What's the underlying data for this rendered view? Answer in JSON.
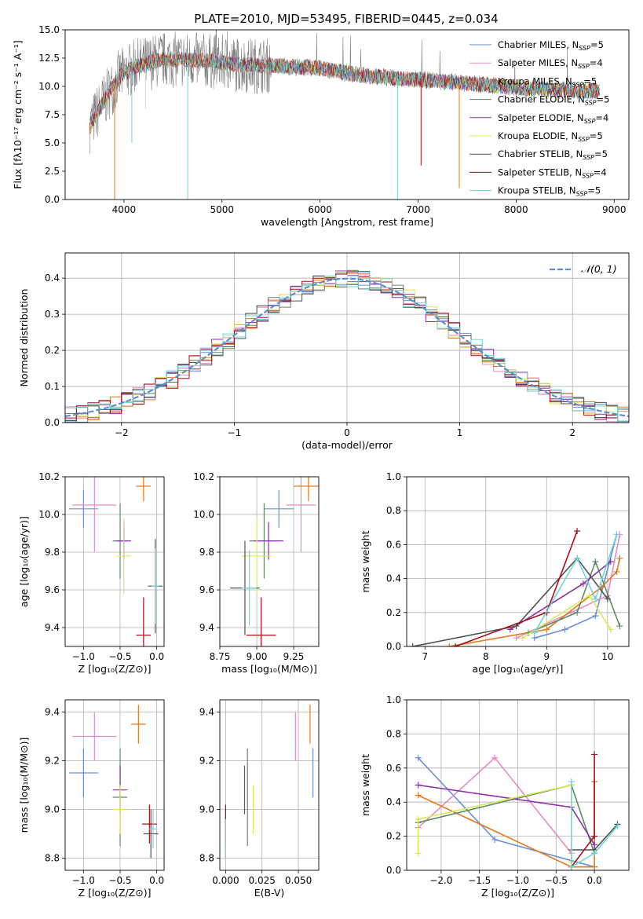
{
  "figure": {
    "title": "PLATE=2010, MJD=53495, FIBERID=0445, z=0.034"
  },
  "model_colors": [
    "#6b8fd6",
    "#e78ac3",
    "#e6781e",
    "#5f8b64",
    "#8e2ea8",
    "#d9e85a",
    "#505050",
    "#a50f15",
    "#6fd4dc"
  ],
  "legend": [
    {
      "label": "Chabrier MILES, N",
      "sub": "SSP",
      "suffix": "=5"
    },
    {
      "label": "Salpeter MILES, N",
      "sub": "SSP",
      "suffix": "=4"
    },
    {
      "label": "Kroupa MILES, N",
      "sub": "SSP",
      "suffix": "=5"
    },
    {
      "label": "Chabrier ELODIE, N",
      "sub": "SSP",
      "suffix": "=5"
    },
    {
      "label": "Salpeter ELODIE, N",
      "sub": "SSP",
      "suffix": "=4"
    },
    {
      "label": "Kroupa ELODIE, N",
      "sub": "SSP",
      "suffix": "=5"
    },
    {
      "label": "Chabrier STELIB, N",
      "sub": "SSP",
      "suffix": "=5"
    },
    {
      "label": "Salpeter STELIB, N",
      "sub": "SSP",
      "suffix": "=4"
    },
    {
      "label": "Kroupa STELIB, N",
      "sub": "SSP",
      "suffix": "=5"
    }
  ],
  "chart_data": [
    {
      "id": "spectrum",
      "type": "line",
      "xlabel": "wavelength [Angstrom, rest frame]",
      "ylabel": "Flux [fλ10⁻¹⁷ erg cm⁻² s⁻¹ A⁻¹]",
      "xlim": [
        3400,
        9150
      ],
      "ylim": [
        0,
        15
      ],
      "xticks": [
        4000,
        5000,
        6000,
        7000,
        8000,
        9000
      ],
      "yticks": [
        0.0,
        2.5,
        5.0,
        7.5,
        10.0,
        12.5,
        15.0
      ],
      "data_range": [
        3650,
        8850
      ],
      "continuum": [
        [
          3650,
          6.5
        ],
        [
          3800,
          8.8
        ],
        [
          3950,
          10.8
        ],
        [
          4100,
          11.7
        ],
        [
          4400,
          12.4
        ],
        [
          4800,
          12.3
        ],
        [
          5200,
          11.9
        ],
        [
          5600,
          11.8
        ],
        [
          6000,
          11.6
        ],
        [
          6400,
          11.0
        ],
        [
          6800,
          10.7
        ],
        [
          7200,
          10.5
        ],
        [
          7600,
          10.2
        ],
        [
          8000,
          9.9
        ],
        [
          8400,
          9.7
        ],
        [
          8850,
          9.6
        ]
      ],
      "model_spikes": [
        [
          3905,
          0.0
        ],
        [
          4650,
          0.0
        ],
        [
          4080,
          5.0
        ],
        [
          4220,
          8.0
        ],
        [
          6790,
          0.0
        ],
        [
          7030,
          3.0
        ],
        [
          7420,
          1.0
        ]
      ]
    },
    {
      "id": "residuals",
      "type": "line",
      "xlabel": "(data-model)/error",
      "ylabel": "Normed distribution",
      "xlim": [
        -2.5,
        2.5
      ],
      "ylim": [
        0,
        0.47
      ],
      "xticks": [
        -2,
        -1,
        0,
        1,
        2
      ],
      "yticks": [
        0.0,
        0.1,
        0.2,
        0.3,
        0.4
      ],
      "legend_label": "𝒩(0, 1)",
      "bin_width": 0.1,
      "bin_start": -2.5,
      "grid": true
    },
    {
      "id": "age_vs_Z",
      "type": "scatter",
      "xlabel": "Z [log₁₀(Z/Z⊙)]",
      "ylabel": "age  [log₁₀(age/yr)]",
      "xlim": [
        -1.25,
        0.1
      ],
      "ylim": [
        9.3,
        10.2
      ],
      "xticks": [
        -1.0,
        -0.5,
        0.0
      ],
      "yticks": [
        9.4,
        9.6,
        9.8,
        10.0,
        10.2
      ],
      "points": [
        {
          "x": -1.0,
          "y": 10.03,
          "xerr": 0.2,
          "yerr": 0.1
        },
        {
          "x": -0.85,
          "y": 10.05,
          "xerr": 0.3,
          "yerr": 0.25
        },
        {
          "x": -0.18,
          "y": 10.15,
          "xerr": 0.1,
          "yerr": 0.08
        },
        {
          "x": -0.5,
          "y": 9.86,
          "xerr": 0.1,
          "yerr": 0.2
        },
        {
          "x": -0.45,
          "y": 9.86,
          "xerr": 0.1,
          "yerr": 0.1
        },
        {
          "x": -0.45,
          "y": 9.78,
          "xerr": 0.1,
          "yerr": 0.2
        },
        {
          "x": -0.02,
          "y": 9.62,
          "xerr": 0.1,
          "yerr": 0.25
        },
        {
          "x": -0.18,
          "y": 9.36,
          "xerr": 0.1,
          "yerr": 0.2
        },
        {
          "x": -0.02,
          "y": 9.62,
          "xerr": 0.05,
          "yerr": 0.2
        }
      ]
    },
    {
      "id": "age_vs_mass",
      "type": "scatter",
      "xlabel": "mass [log₁₀(M/M⊙)]",
      "ylabel": "",
      "xlim": [
        8.75,
        9.42
      ],
      "ylim": [
        9.3,
        10.2
      ],
      "xticks": [
        8.75,
        9.0,
        9.25
      ],
      "yticks": [
        9.4,
        9.6,
        9.8,
        10.0,
        10.2
      ],
      "points": [
        {
          "x": 9.15,
          "y": 10.03,
          "xerr": 0.1,
          "yerr": 0.1
        },
        {
          "x": 9.3,
          "y": 10.05,
          "xerr": 0.1,
          "yerr": 0.25
        },
        {
          "x": 9.35,
          "y": 10.15,
          "xerr": 0.1,
          "yerr": 0.08
        },
        {
          "x": 9.05,
          "y": 9.86,
          "xerr": 0.1,
          "yerr": 0.2
        },
        {
          "x": 9.08,
          "y": 9.86,
          "xerr": 0.1,
          "yerr": 0.1
        },
        {
          "x": 9.0,
          "y": 9.78,
          "xerr": 0.1,
          "yerr": 0.2
        },
        {
          "x": 8.92,
          "y": 9.61,
          "xerr": 0.1,
          "yerr": 0.25
        },
        {
          "x": 9.03,
          "y": 9.36,
          "xerr": 0.1,
          "yerr": 0.2
        },
        {
          "x": 8.95,
          "y": 9.61,
          "xerr": 0.05,
          "yerr": 0.2
        }
      ]
    },
    {
      "id": "massweight_vs_age",
      "type": "line",
      "xlabel": "age  [log₁₀(age/yr)]",
      "ylabel": "mass weight",
      "xlim": [
        6.7,
        10.35
      ],
      "ylim": [
        0,
        1
      ],
      "xticks": [
        7,
        8,
        9,
        10
      ],
      "yticks": [
        0.0,
        0.2,
        0.4,
        0.6,
        0.8,
        1.0
      ],
      "series": [
        {
          "x": [
            8.8,
            9.3,
            9.8,
            10.15
          ],
          "y": [
            0.05,
            0.1,
            0.18,
            0.66
          ]
        },
        {
          "x": [
            8.5,
            9.4,
            10.0,
            10.2
          ],
          "y": [
            0.05,
            0.2,
            0.3,
            0.66
          ]
        },
        {
          "x": [
            7.4,
            9.0,
            9.9,
            10.15,
            10.2
          ],
          "y": [
            0.0,
            0.1,
            0.35,
            0.44,
            0.52
          ]
        },
        {
          "x": [
            8.7,
            9.5,
            9.8,
            10.2
          ],
          "y": [
            0.08,
            0.2,
            0.5,
            0.12
          ]
        },
        {
          "x": [
            8.4,
            9.6,
            10.05
          ],
          "y": [
            0.1,
            0.37,
            0.5
          ]
        },
        {
          "x": [
            8.6,
            9.7,
            10.05
          ],
          "y": [
            0.05,
            0.3,
            0.1
          ]
        },
        {
          "x": [
            6.8,
            8.5,
            9.5,
            10.0
          ],
          "y": [
            0.0,
            0.12,
            0.52,
            0.28
          ]
        },
        {
          "x": [
            7.5,
            9.0,
            9.5
          ],
          "y": [
            0.0,
            0.2,
            0.68
          ]
        },
        {
          "x": [
            8.8,
            9.5,
            9.8,
            10.15
          ],
          "y": [
            0.08,
            0.52,
            0.28,
            0.66
          ]
        }
      ]
    },
    {
      "id": "mass_vs_Z",
      "type": "scatter",
      "xlabel": "Z [log₁₀(Z/Z⊙)]",
      "ylabel": "mass [log₁₀(M/M⊙)]",
      "xlim": [
        -1.25,
        0.1
      ],
      "ylim": [
        8.75,
        9.45
      ],
      "xticks": [
        -1.0,
        -0.5,
        0.0
      ],
      "yticks": [
        8.8,
        9.0,
        9.2,
        9.4
      ],
      "points": [
        {
          "x": -1.0,
          "y": 9.15,
          "xerr": 0.2,
          "yerr": 0.1
        },
        {
          "x": -0.85,
          "y": 9.3,
          "xerr": 0.3,
          "yerr": 0.1
        },
        {
          "x": -0.25,
          "y": 9.35,
          "xerr": 0.1,
          "yerr": 0.08
        },
        {
          "x": -0.5,
          "y": 9.05,
          "xerr": 0.1,
          "yerr": 0.2
        },
        {
          "x": -0.5,
          "y": 9.08,
          "xerr": 0.1,
          "yerr": 0.1
        },
        {
          "x": -0.5,
          "y": 9.0,
          "xerr": 0.1,
          "yerr": 0.1
        },
        {
          "x": -0.08,
          "y": 8.9,
          "xerr": 0.1,
          "yerr": 0.1
        },
        {
          "x": -0.1,
          "y": 8.94,
          "xerr": 0.1,
          "yerr": 0.08
        },
        {
          "x": -0.05,
          "y": 8.92,
          "xerr": 0.05,
          "yerr": 0.08
        }
      ]
    },
    {
      "id": "mass_vs_ebv",
      "type": "scatter",
      "xlabel": "E(B-V)",
      "ylabel": "",
      "xlim": [
        -0.004,
        0.064
      ],
      "ylim": [
        8.75,
        9.45
      ],
      "xticks": [
        0.0,
        0.025,
        0.05
      ],
      "yticks": [
        8.8,
        9.0,
        9.2,
        9.4
      ],
      "points": [
        {
          "x": 0.06,
          "y": 9.15,
          "xerr": 0.0,
          "yerr": 0.1
        },
        {
          "x": 0.048,
          "y": 9.3,
          "xerr": 0.0,
          "yerr": 0.1
        },
        {
          "x": 0.058,
          "y": 9.35,
          "xerr": 0.0,
          "yerr": 0.08
        },
        {
          "x": 0.015,
          "y": 9.05,
          "xerr": 0.0,
          "yerr": 0.2
        },
        {
          "x": 0.013,
          "y": 9.08,
          "xerr": 0.0,
          "yerr": 0.1
        },
        {
          "x": 0.019,
          "y": 9.0,
          "xerr": 0.0,
          "yerr": 0.1
        },
        {
          "x": 0.0,
          "y": 8.9,
          "xerr": 0.0,
          "yerr": 0.1
        },
        {
          "x": 0.0,
          "y": 8.94,
          "xerr": 0.0,
          "yerr": 0.08
        },
        {
          "x": 0.0,
          "y": 8.88,
          "xerr": 0.0,
          "yerr": 0.08
        }
      ]
    },
    {
      "id": "massweight_vs_Z",
      "type": "line",
      "xlabel": "Z [log₁₀(Z/Z⊙)]",
      "ylabel": "mass weight",
      "xlim": [
        -2.45,
        0.45
      ],
      "ylim": [
        0,
        1
      ],
      "xticks": [
        -2.0,
        -1.5,
        -1.0,
        -0.5,
        0.0
      ],
      "yticks": [
        0.0,
        0.2,
        0.4,
        0.6,
        0.8,
        1.0
      ],
      "series": [
        {
          "x": [
            -2.3,
            -1.3,
            0.0
          ],
          "y": [
            0.66,
            0.18,
            0.02
          ]
        },
        {
          "x": [
            -2.3,
            -1.3,
            -0.3
          ],
          "y": [
            0.25,
            0.66,
            0.1
          ]
        },
        {
          "x": [
            -2.3,
            -0.3,
            0.0,
            0.0
          ],
          "y": [
            0.44,
            0.02,
            0.02,
            0.52
          ]
        },
        {
          "x": [
            -2.3,
            -0.3,
            0.0
          ],
          "y": [
            0.28,
            0.5,
            0.1
          ]
        },
        {
          "x": [
            -2.3,
            -0.3,
            0.0
          ],
          "y": [
            0.5,
            0.37,
            0.15
          ]
        },
        {
          "x": [
            -2.3,
            -2.3,
            -0.3,
            -0.3
          ],
          "y": [
            0.1,
            0.3,
            0.5,
            0.05
          ]
        },
        {
          "x": [
            -0.3,
            0.0,
            0.3
          ],
          "y": [
            0.12,
            0.12,
            0.27
          ]
        },
        {
          "x": [
            -0.3,
            0.0,
            0.0
          ],
          "y": [
            0.02,
            0.2,
            0.68
          ]
        },
        {
          "x": [
            -0.3,
            -0.3,
            0.0,
            0.3
          ],
          "y": [
            0.52,
            0.02,
            0.1,
            0.26
          ]
        }
      ]
    }
  ]
}
